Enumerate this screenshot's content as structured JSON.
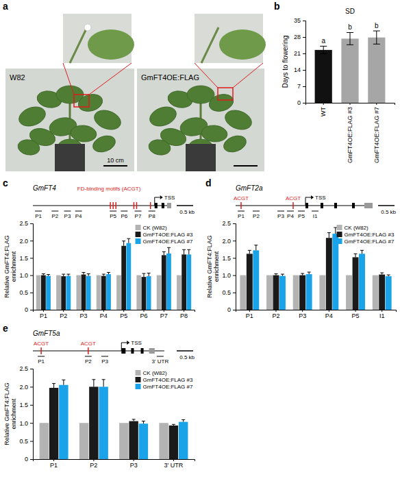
{
  "panel_a": {
    "letter": "a",
    "labels": [
      "W82",
      "GmFT4OE:FLAG"
    ],
    "scale_bar": "10 cm"
  },
  "chart_data": [
    {
      "type": "bar",
      "letter": "b",
      "title": "SD",
      "y_label": "Days to flowering",
      "categories": [
        "WT",
        "GmFT4OE:FLAG #3",
        "GmFT4OE:FLAG #7"
      ],
      "values": [
        22.5,
        27.3,
        27.8
      ],
      "errors": [
        1.6,
        2.6,
        2.8
      ],
      "significance": [
        "a",
        "b",
        "b"
      ],
      "colors": [
        "#111111",
        "#a6a6a6",
        "#a6a6a6"
      ],
      "ylim": [
        0,
        35
      ],
      "yticks": [
        0,
        7,
        14,
        21,
        28,
        35
      ]
    },
    {
      "type": "bar",
      "letter": "c",
      "y_label": "Relative GmFT4:FLAG enrichment",
      "gene": {
        "name": "GmFT4",
        "motif_labels": [
          "FD-binding motifs (ACGT)"
        ],
        "tss": "TSS",
        "scale": "0.5 kb"
      },
      "categories": [
        "P1",
        "P2",
        "P3",
        "P4",
        "P5",
        "P6",
        "P7",
        "P8"
      ],
      "series": [
        {
          "name": "CK (W82)",
          "color": "#b3b3b3",
          "values": [
            1,
            1,
            1,
            1,
            1,
            1,
            1,
            1
          ]
        },
        {
          "name": "GmFT4OE:FLAG #3",
          "color": "#1a1a1a",
          "values": [
            1.0,
            0.97,
            1.02,
            0.98,
            1.85,
            0.95,
            1.58,
            1.6
          ],
          "errors": [
            0.04,
            0.06,
            0.06,
            0.05,
            0.14,
            0.1,
            0.1,
            0.14
          ]
        },
        {
          "name": "GmFT4OE:FLAG #7",
          "color": "#1aa3e8",
          "values": [
            0.98,
            0.98,
            0.98,
            1.03,
            1.93,
            0.97,
            1.63,
            1.6
          ],
          "errors": [
            0.04,
            0.05,
            0.06,
            0.05,
            0.13,
            0.09,
            0.17,
            0.14
          ]
        }
      ],
      "ylim": [
        0,
        2.5
      ],
      "yticks": [
        0,
        0.5,
        {
          "value": 1,
          "label": "1.0"
        },
        1.5,
        {
          "value": 2,
          "label": "2.0"
        },
        2.5
      ],
      "legend": "top-right"
    },
    {
      "type": "bar",
      "letter": "d",
      "y_label": "Relative GmFT4:FLAG enrichment",
      "gene": {
        "name": "GmFT2a",
        "motif_labels": [
          "ACGT",
          "ACGT"
        ],
        "tss": "TSS",
        "scale": "0.5 kb"
      },
      "categories": [
        "P1",
        "P2",
        "P3",
        "P4",
        "P5",
        "I1"
      ],
      "series": [
        {
          "name": "CK (W82)",
          "color": "#b3b3b3",
          "values": [
            1,
            1,
            1,
            1,
            1,
            1
          ]
        },
        {
          "name": "GmFT4OE:FLAG #3",
          "color": "#1a1a1a",
          "values": [
            1.62,
            1.0,
            1.0,
            2.08,
            1.52,
            1.02
          ],
          "errors": [
            0.1,
            0.04,
            0.05,
            0.15,
            0.1,
            0.05
          ]
        },
        {
          "name": "GmFT4OE:FLAG #7",
          "color": "#1aa3e8",
          "values": [
            1.72,
            0.98,
            1.03,
            2.2,
            1.62,
            0.97
          ],
          "errors": [
            0.15,
            0.05,
            0.06,
            0.18,
            0.1,
            0.04
          ]
        }
      ],
      "ylim": [
        0,
        2.5
      ],
      "yticks": [
        0,
        0.5,
        {
          "value": 1,
          "label": "1.0"
        },
        1.5,
        {
          "value": 2,
          "label": "2.0"
        },
        2.5
      ],
      "legend": "top-right"
    },
    {
      "type": "bar",
      "letter": "e",
      "y_label": "Relative GmFT4:FLAG enrichment",
      "gene": {
        "name": "GmFT5a",
        "motif_labels": [
          "ACGT",
          "ACGT"
        ],
        "tss": "TSS",
        "scale": "0.5 kb"
      },
      "categories": [
        "P1",
        "P2",
        "P3",
        "3' UTR"
      ],
      "series": [
        {
          "name": "CK (W82)",
          "color": "#b3b3b3",
          "values": [
            1,
            1,
            1,
            1
          ]
        },
        {
          "name": "GmFT4OE:FLAG #3",
          "color": "#1a1a1a",
          "values": [
            1.97,
            2.0,
            1.05,
            0.93
          ],
          "errors": [
            0.12,
            0.2,
            0.05,
            0.03
          ]
        },
        {
          "name": "GmFT4OE:FLAG #7",
          "color": "#1aa3e8",
          "values": [
            2.05,
            2.0,
            0.98,
            1.03
          ],
          "errors": [
            0.14,
            0.2,
            0.07,
            0.06
          ]
        }
      ],
      "ylim": [
        0,
        2.5
      ],
      "yticks": [
        0,
        0.5,
        {
          "value": 1,
          "label": "1.0"
        },
        1.5,
        {
          "value": 2,
          "label": "2.0"
        },
        2.5
      ],
      "legend": "top-right"
    }
  ]
}
